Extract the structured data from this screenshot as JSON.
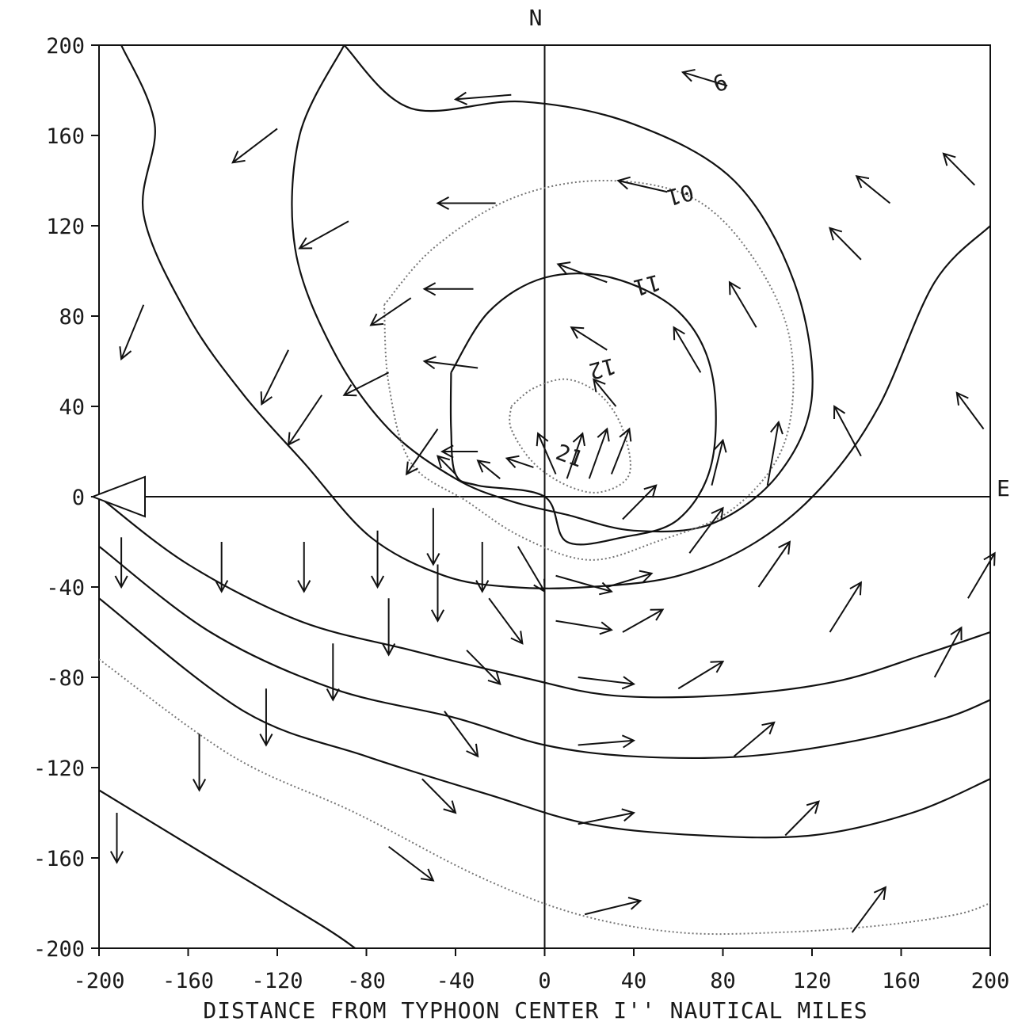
{
  "chart_data": {
    "type": "vector field with contours",
    "title": "",
    "xlabel": "DISTANCE FROM TYPHOON CENTER I'' NAUTICAL MILES",
    "ylabel": "",
    "xlim": [
      -200,
      200
    ],
    "ylim": [
      -200,
      200
    ],
    "x_ticks": [
      "-200",
      "-160",
      "-120",
      "-80",
      "-40",
      "0",
      "40",
      "80",
      "120",
      "160",
      "200"
    ],
    "y_ticks": [
      "200",
      "160",
      "120",
      "80",
      "40",
      "0",
      "-40",
      "-80",
      "-120",
      "-160",
      "-200"
    ],
    "x_tick_values": [
      -200,
      -160,
      -120,
      -80,
      -40,
      0,
      40,
      80,
      120,
      160,
      200
    ],
    "y_tick_values": [
      200,
      160,
      120,
      80,
      40,
      0,
      -40,
      -80,
      -120,
      -160,
      -200
    ],
    "north_label": "N",
    "east_label": "E",
    "contour_labels": [
      {
        "text": "6",
        "x": 80,
        "y": 180,
        "angle": -20
      },
      {
        "text": "01",
        "x": 60,
        "y": 137,
        "angle": 165
      },
      {
        "text": "11",
        "x": 45,
        "y": 97,
        "angle": 165
      },
      {
        "text": "12",
        "x": 25,
        "y": 60,
        "angle": 165
      },
      {
        "text": "21",
        "x": 10,
        "y": 15,
        "angle": 20
      }
    ],
    "contours": [
      {
        "style": "solid",
        "points": [
          [
            -190,
            200
          ],
          [
            -175,
            165
          ],
          [
            -180,
            125
          ],
          [
            -160,
            80
          ],
          [
            -135,
            45
          ],
          [
            -108,
            15
          ],
          [
            -78,
            -18
          ],
          [
            -45,
            -35
          ],
          [
            -15,
            -40
          ],
          [
            20,
            -40
          ],
          [
            60,
            -35
          ],
          [
            95,
            -20
          ],
          [
            125,
            5
          ],
          [
            150,
            40
          ],
          [
            175,
            95
          ],
          [
            200,
            120
          ]
        ]
      },
      {
        "style": "solid",
        "points": [
          [
            -90,
            200
          ],
          [
            -110,
            160
          ],
          [
            -112,
            110
          ],
          [
            -95,
            65
          ],
          [
            -70,
            30
          ],
          [
            -40,
            8
          ],
          [
            -15,
            -2
          ],
          [
            10,
            -8
          ],
          [
            40,
            -15
          ],
          [
            75,
            -12
          ],
          [
            105,
            10
          ],
          [
            120,
            45
          ],
          [
            112,
            95
          ],
          [
            85,
            140
          ],
          [
            40,
            165
          ],
          [
            -10,
            175
          ],
          [
            -60,
            172
          ],
          [
            -90,
            200
          ]
        ]
      },
      {
        "style": "dotted",
        "points": [
          [
            -72,
            85
          ],
          [
            -50,
            110
          ],
          [
            -15,
            132
          ],
          [
            25,
            140
          ],
          [
            65,
            133
          ],
          [
            92,
            108
          ],
          [
            110,
            70
          ],
          [
            108,
            25
          ],
          [
            85,
            -5
          ],
          [
            50,
            -20
          ],
          [
            20,
            -28
          ],
          [
            -10,
            -18
          ],
          [
            -35,
            -2
          ],
          [
            -60,
            15
          ],
          [
            -70,
            50
          ],
          [
            -72,
            85
          ]
        ]
      },
      {
        "style": "solid",
        "points": [
          [
            -42,
            55
          ],
          [
            -25,
            82
          ],
          [
            0,
            97
          ],
          [
            30,
            97
          ],
          [
            60,
            82
          ],
          [
            75,
            55
          ],
          [
            75,
            15
          ],
          [
            60,
            -10
          ],
          [
            35,
            -18
          ],
          [
            10,
            -20
          ],
          [
            0,
            0
          ],
          [
            -30,
            5
          ],
          [
            -40,
            10
          ],
          [
            -42,
            30
          ],
          [
            -42,
            55
          ]
        ]
      },
      {
        "style": "dotted",
        "points": [
          [
            -15,
            40
          ],
          [
            -5,
            48
          ],
          [
            10,
            52
          ],
          [
            25,
            45
          ],
          [
            35,
            30
          ],
          [
            38,
            10
          ],
          [
            25,
            2
          ],
          [
            10,
            5
          ],
          [
            -5,
            15
          ],
          [
            -15,
            30
          ],
          [
            -15,
            40
          ]
        ]
      },
      {
        "style": "solid",
        "points": [
          [
            -200,
            0
          ],
          [
            -160,
            -30
          ],
          [
            -110,
            -55
          ],
          [
            -60,
            -68
          ],
          [
            -10,
            -80
          ],
          [
            30,
            -88
          ],
          [
            80,
            -88
          ],
          [
            130,
            -82
          ],
          [
            170,
            -70
          ],
          [
            200,
            -60
          ]
        ]
      },
      {
        "style": "solid",
        "points": [
          [
            -200,
            -22
          ],
          [
            -150,
            -60
          ],
          [
            -95,
            -85
          ],
          [
            -40,
            -98
          ],
          [
            0,
            -110
          ],
          [
            40,
            -115
          ],
          [
            90,
            -115
          ],
          [
            140,
            -108
          ],
          [
            180,
            -98
          ],
          [
            200,
            -90
          ]
        ]
      },
      {
        "style": "solid",
        "points": [
          [
            -200,
            -45
          ],
          [
            -135,
            -95
          ],
          [
            -80,
            -115
          ],
          [
            -25,
            -132
          ],
          [
            20,
            -145
          ],
          [
            70,
            -150
          ],
          [
            120,
            -150
          ],
          [
            165,
            -140
          ],
          [
            200,
            -125
          ]
        ]
      },
      {
        "style": "dotted",
        "points": [
          [
            -200,
            -72
          ],
          [
            -140,
            -115
          ],
          [
            -85,
            -140
          ],
          [
            -30,
            -168
          ],
          [
            15,
            -185
          ],
          [
            60,
            -193
          ],
          [
            105,
            -193
          ],
          [
            150,
            -190
          ],
          [
            185,
            -185
          ],
          [
            200,
            -180
          ]
        ]
      },
      {
        "style": "solid",
        "points": [
          [
            -200,
            -130
          ],
          [
            -150,
            -160
          ],
          [
            -100,
            -190
          ],
          [
            -85,
            -200
          ]
        ]
      }
    ],
    "vectors": [
      {
        "x": -15,
        "y": 178,
        "u": -25,
        "v": -2
      },
      {
        "x": 82,
        "y": 182,
        "u": -20,
        "v": 6
      },
      {
        "x": -120,
        "y": 163,
        "u": -20,
        "v": -15
      },
      {
        "x": -22,
        "y": 130,
        "u": -26,
        "v": 0
      },
      {
        "x": 55,
        "y": 135,
        "u": -22,
        "v": 5
      },
      {
        "x": -88,
        "y": 122,
        "u": -22,
        "v": -12
      },
      {
        "x": 155,
        "y": 130,
        "u": -15,
        "v": 12
      },
      {
        "x": 142,
        "y": 105,
        "u": -14,
        "v": 14
      },
      {
        "x": 193,
        "y": 138,
        "u": -14,
        "v": 14
      },
      {
        "x": -32,
        "y": 92,
        "u": -22,
        "v": 0
      },
      {
        "x": 28,
        "y": 95,
        "u": -22,
        "v": 8
      },
      {
        "x": -60,
        "y": 88,
        "u": -18,
        "v": -12
      },
      {
        "x": -180,
        "y": 85,
        "u": -10,
        "v": -24
      },
      {
        "x": 95,
        "y": 75,
        "u": -12,
        "v": 20
      },
      {
        "x": -115,
        "y": 65,
        "u": -12,
        "v": -24
      },
      {
        "x": 70,
        "y": 55,
        "u": -12,
        "v": 20
      },
      {
        "x": 28,
        "y": 65,
        "u": -16,
        "v": 10
      },
      {
        "x": -30,
        "y": 57,
        "u": -24,
        "v": 3
      },
      {
        "x": -70,
        "y": 55,
        "u": -20,
        "v": -10
      },
      {
        "x": -100,
        "y": 45,
        "u": -15,
        "v": -22
      },
      {
        "x": 32,
        "y": 40,
        "u": -10,
        "v": 12
      },
      {
        "x": 142,
        "y": 18,
        "u": -12,
        "v": 22
      },
      {
        "x": 197,
        "y": 30,
        "u": -12,
        "v": 16
      },
      {
        "x": -48,
        "y": 30,
        "u": -14,
        "v": -20
      },
      {
        "x": 20,
        "y": 8,
        "u": 8,
        "v": 22
      },
      {
        "x": 30,
        "y": 10,
        "u": 8,
        "v": 20
      },
      {
        "x": 10,
        "y": 8,
        "u": 7,
        "v": 20
      },
      {
        "x": 5,
        "y": 10,
        "u": -8,
        "v": 18
      },
      {
        "x": 100,
        "y": 5,
        "u": 5,
        "v": 28
      },
      {
        "x": 75,
        "y": 5,
        "u": 5,
        "v": 20
      },
      {
        "x": -30,
        "y": 20,
        "u": -16,
        "v": 0
      },
      {
        "x": -40,
        "y": 10,
        "u": -8,
        "v": 8
      },
      {
        "x": -20,
        "y": 8,
        "u": -10,
        "v": 8
      },
      {
        "x": -5,
        "y": 13,
        "u": -12,
        "v": 4
      },
      {
        "x": 35,
        "y": -10,
        "u": 15,
        "v": 15
      },
      {
        "x": 65,
        "y": -25,
        "u": 15,
        "v": 20
      },
      {
        "x": 96,
        "y": -40,
        "u": 14,
        "v": 20
      },
      {
        "x": 128,
        "y": -60,
        "u": 14,
        "v": 22
      },
      {
        "x": 175,
        "y": -80,
        "u": 12,
        "v": 22
      },
      {
        "x": 190,
        "y": -45,
        "u": 12,
        "v": 20
      },
      {
        "x": -190,
        "y": -18,
        "u": 0,
        "v": -22
      },
      {
        "x": -145,
        "y": -20,
        "u": 0,
        "v": -22
      },
      {
        "x": -108,
        "y": -20,
        "u": 0,
        "v": -22
      },
      {
        "x": -75,
        "y": -15,
        "u": 0,
        "v": -25
      },
      {
        "x": -50,
        "y": -5,
        "u": 0,
        "v": -25
      },
      {
        "x": -28,
        "y": -20,
        "u": 0,
        "v": -22
      },
      {
        "x": -12,
        "y": -22,
        "u": 12,
        "v": -20
      },
      {
        "x": -48,
        "y": -30,
        "u": 0,
        "v": -25
      },
      {
        "x": 5,
        "y": -35,
        "u": 25,
        "v": -7
      },
      {
        "x": 28,
        "y": -40,
        "u": 20,
        "v": 6
      },
      {
        "x": 35,
        "y": -60,
        "u": 18,
        "v": 10
      },
      {
        "x": 5,
        "y": -55,
        "u": 25,
        "v": -4
      },
      {
        "x": -25,
        "y": -45,
        "u": 15,
        "v": -20
      },
      {
        "x": -70,
        "y": -45,
        "u": 0,
        "v": -25
      },
      {
        "x": -95,
        "y": -65,
        "u": 0,
        "v": -25
      },
      {
        "x": -125,
        "y": -85,
        "u": 0,
        "v": -25
      },
      {
        "x": -155,
        "y": -105,
        "u": 0,
        "v": -25
      },
      {
        "x": -192,
        "y": -140,
        "u": 0,
        "v": -22
      },
      {
        "x": -35,
        "y": -68,
        "u": 15,
        "v": -15
      },
      {
        "x": 15,
        "y": -80,
        "u": 25,
        "v": -3
      },
      {
        "x": 60,
        "y": -85,
        "u": 20,
        "v": 12
      },
      {
        "x": 85,
        "y": -115,
        "u": 18,
        "v": 15
      },
      {
        "x": 15,
        "y": -110,
        "u": 25,
        "v": 2
      },
      {
        "x": -45,
        "y": -95,
        "u": 15,
        "v": -20
      },
      {
        "x": -55,
        "y": -125,
        "u": 15,
        "v": -15
      },
      {
        "x": 15,
        "y": -145,
        "u": 25,
        "v": 5
      },
      {
        "x": 108,
        "y": -150,
        "u": 15,
        "v": 15
      },
      {
        "x": -70,
        "y": -155,
        "u": 20,
        "v": -15
      },
      {
        "x": 18,
        "y": -185,
        "u": 25,
        "v": 6
      },
      {
        "x": 138,
        "y": -193,
        "u": 15,
        "v": 20
      }
    ]
  }
}
